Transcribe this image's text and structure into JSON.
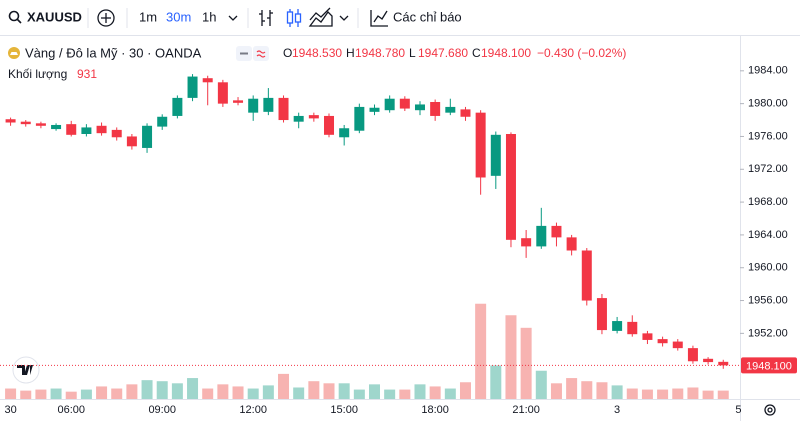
{
  "toolbar": {
    "symbol": "XAUUSD",
    "intervals": [
      "1m",
      "30m",
      "1h"
    ],
    "indicators": "Các chỉ báo"
  },
  "legend": {
    "title": "Vàng / Đô la Mỹ · 30 · OANDA",
    "ohlc": [
      {
        "key": "O",
        "value": "1948.530"
      },
      {
        "key": "H",
        "value": "1948.780"
      },
      {
        "key": "L",
        "value": "1947.680"
      },
      {
        "key": "C",
        "value": "1948.100"
      }
    ],
    "change": "−0.430 (−0.02%)",
    "volume_label": "Khối lượng"
  },
  "chart_data": {
    "type": "candlestick",
    "categories": [
      "30",
      null,
      null,
      null,
      "06:00",
      null,
      null,
      null,
      null,
      null,
      "09:00",
      null,
      null,
      null,
      null,
      null,
      "12:00",
      null,
      null,
      null,
      null,
      null,
      "15:00",
      null,
      null,
      null,
      null,
      null,
      "18:00",
      null,
      null,
      null,
      null,
      null,
      "21:00",
      null,
      null,
      null,
      null,
      null,
      "3",
      null,
      null,
      null,
      null,
      null,
      null,
      null,
      "5"
    ],
    "open": [
      1978.1,
      1977.8,
      1977.6,
      1976.9,
      1977.5,
      1976.3,
      1977.3,
      1976.8,
      1976.0,
      1974.6,
      1977.2,
      1978.5,
      1980.7,
      1983.1,
      1982.6,
      1980.4,
      1978.9,
      1979.0,
      1980.7,
      1977.8,
      1978.6,
      1978.5,
      1975.9,
      1976.7,
      1979.0,
      1979.2,
      1980.6,
      1979.2,
      1980.2,
      1978.9,
      1979.3,
      1978.9,
      1971.2,
      1976.3,
      1963.6,
      1962.6,
      1965.1,
      1963.7,
      1962.1,
      1956.3,
      1952.3,
      1953.4,
      1952.0,
      1951.3,
      1951.0,
      1950.2,
      1948.9,
      1948.53,
      null
    ],
    "high": [
      1978.3,
      1978.0,
      1977.8,
      1977.6,
      1977.9,
      1977.5,
      1977.7,
      1977.1,
      1976.3,
      1977.6,
      1978.7,
      1981.0,
      1983.6,
      1983.4,
      1982.9,
      1980.8,
      1981.0,
      1981.9,
      1981.0,
      1978.9,
      1978.9,
      1978.8,
      1977.4,
      1980.0,
      1979.9,
      1981.0,
      1980.9,
      1980.3,
      1980.5,
      1980.6,
      1979.6,
      1979.2,
      1976.6,
      1976.5,
      1964.6,
      1967.3,
      1965.5,
      1964.0,
      1962.4,
      1956.8,
      1954.0,
      1954.2,
      1952.3,
      1951.6,
      1951.3,
      1950.5,
      1949.1,
      1948.78,
      null
    ],
    "low": [
      1977.3,
      1977.2,
      1977.0,
      1976.7,
      1976.0,
      1976.0,
      1976.1,
      1975.5,
      1974.4,
      1974.0,
      1976.8,
      1978.2,
      1980.3,
      1979.8,
      1979.6,
      1979.8,
      1977.9,
      1978.6,
      1977.7,
      1977.0,
      1977.8,
      1975.9,
      1974.9,
      1976.4,
      1978.6,
      1978.9,
      1979.1,
      1978.6,
      1977.9,
      1978.6,
      1977.9,
      1968.9,
      1969.6,
      1962.5,
      1961.2,
      1962.3,
      1962.6,
      1961.5,
      1955.4,
      1951.9,
      1952.0,
      1951.6,
      1950.7,
      1950.4,
      1949.9,
      1948.3,
      1948.2,
      1947.68,
      null
    ],
    "close": [
      1977.7,
      1977.5,
      1977.3,
      1977.4,
      1976.2,
      1977.1,
      1976.4,
      1975.9,
      1974.8,
      1977.3,
      1978.4,
      1980.7,
      1983.3,
      1982.6,
      1980.0,
      1980.1,
      1980.6,
      1980.7,
      1978.0,
      1978.5,
      1978.2,
      1976.2,
      1977.0,
      1979.6,
      1979.5,
      1980.6,
      1979.4,
      1979.9,
      1978.5,
      1979.6,
      1978.4,
      1971.0,
      1976.2,
      1963.4,
      1962.6,
      1965.1,
      1963.7,
      1962.1,
      1956.0,
      1952.4,
      1953.5,
      1951.9,
      1951.2,
      1950.8,
      1950.2,
      1948.6,
      1948.5,
      1948.1,
      null
    ],
    "volume": {
      "values": [
        1160,
        928,
        1044,
        1160,
        812,
        1044,
        1392,
        1160,
        1624,
        2088,
        1972,
        1740,
        2320,
        1160,
        1624,
        1392,
        1160,
        1508,
        2784,
        1276,
        1972,
        1740,
        1740,
        1044,
        1624,
        1044,
        1044,
        1624,
        1392,
        1160,
        1856,
        10556,
        3712,
        9280,
        7888,
        3132,
        1740,
        2320,
        1972,
        1856,
        1508,
        1160,
        1044,
        1044,
        1160,
        1276,
        928,
        931,
        null
      ],
      "ylim": [
        0,
        40000
      ],
      "up_color": "#9fd6cc",
      "down_color": "#f7b3b1"
    },
    "up_color": "#089981",
    "down_color": "#f23645",
    "ylim": [
      1944,
      1988
    ],
    "yticks": [
      {
        "value": 1952,
        "label": "1952.00"
      },
      {
        "value": 1956,
        "label": "1956.00"
      },
      {
        "value": 1960,
        "label": "1960.00"
      },
      {
        "value": 1964,
        "label": "1964.00"
      },
      {
        "value": 1968,
        "label": "1968.00"
      },
      {
        "value": 1972,
        "label": "1972.00"
      },
      {
        "value": 1976,
        "label": "1976.00"
      },
      {
        "value": 1980,
        "label": "1980.00"
      },
      {
        "value": 1984,
        "label": "1984.00"
      }
    ],
    "last_price": {
      "value": 1948.1,
      "label": "1948.100"
    }
  }
}
